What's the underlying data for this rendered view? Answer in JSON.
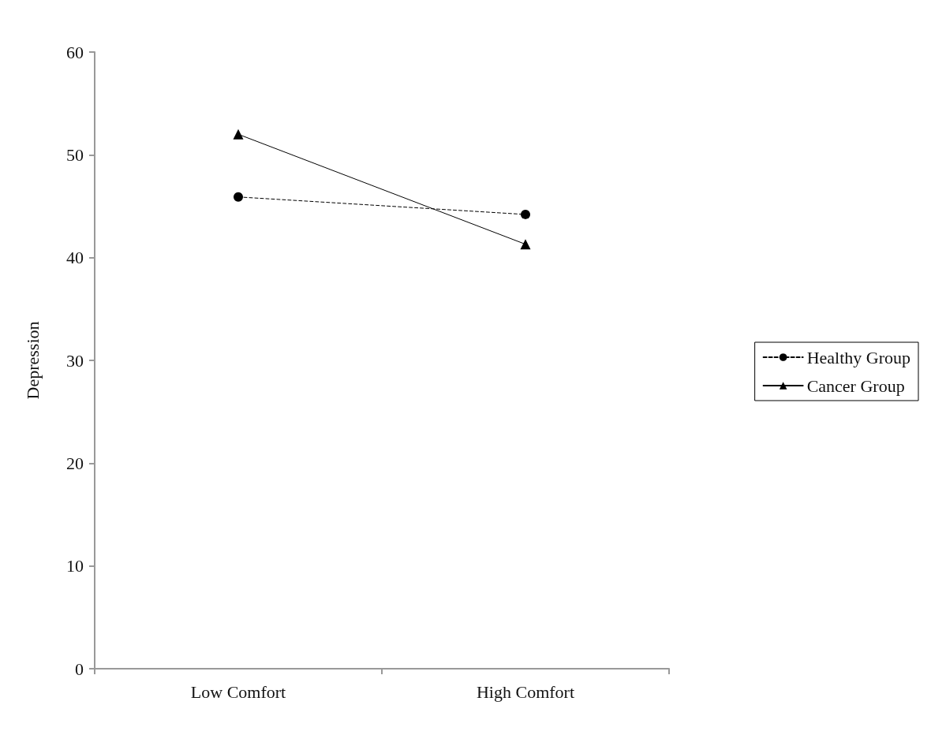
{
  "chart_data": {
    "type": "line",
    "ylabel": "Depression",
    "categories": [
      "Low Comfort",
      "High Comfort"
    ],
    "series": [
      {
        "name": "Healthy Group",
        "color": "#000000",
        "values": [
          45.9,
          44.2
        ],
        "marker": "circle",
        "line_style": "dashed"
      },
      {
        "name": "Cancer Group",
        "color": "#000000",
        "values": [
          52,
          41.3
        ],
        "marker": "triangle",
        "line_style": "solid"
      }
    ],
    "ylim": [
      0,
      60
    ],
    "yticks": [
      0,
      10,
      20,
      30,
      40,
      50,
      60
    ],
    "grid": false,
    "legend": "right"
  }
}
